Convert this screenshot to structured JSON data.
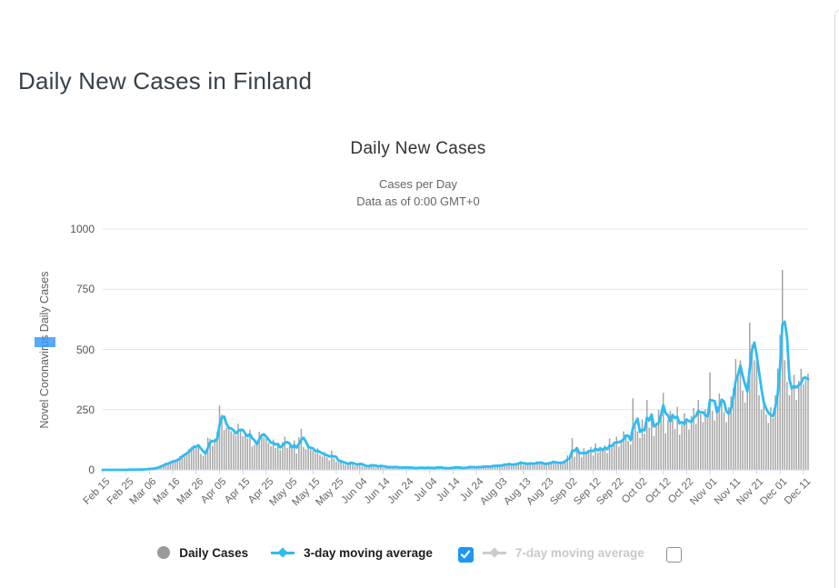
{
  "page": {
    "title": "Daily New Cases in Finland"
  },
  "chart": {
    "title": "Daily New Cases",
    "subtitle_line1": "Cases per Day",
    "subtitle_line2": "Data as of 0:00 GMT+0",
    "y_axis": {
      "title": "Novel Coronavirus Daily Cases",
      "ticks": [
        0,
        250,
        500,
        750,
        1000
      ],
      "max": 1000
    },
    "x_axis": {
      "tick_labels": [
        "Feb 15",
        "Feb 25",
        "Mar 06",
        "Mar 16",
        "Mar 26",
        "Apr 05",
        "Apr 15",
        "Apr 25",
        "May 05",
        "May 15",
        "May 25",
        "Jun 04",
        "Jun 14",
        "Jun 24",
        "Jul 04",
        "Jul 14",
        "Jul 24",
        "Aug 03",
        "Aug 13",
        "Aug 23",
        "Sep 02",
        "Sep 12",
        "Sep 22",
        "Oct 02",
        "Oct 12",
        "Oct 22",
        "Nov 01",
        "Nov 11",
        "Nov 21",
        "Dec 01",
        "Dec 11"
      ],
      "tick_day_indices": [
        0,
        10,
        20,
        30,
        40,
        50,
        60,
        70,
        80,
        90,
        100,
        110,
        120,
        130,
        140,
        150,
        160,
        170,
        180,
        190,
        200,
        210,
        220,
        230,
        240,
        250,
        260,
        270,
        280,
        290,
        300
      ]
    }
  },
  "legend": {
    "daily_cases": {
      "label": "Daily Cases",
      "marker": "circle-icon",
      "color": "#9a9a9a"
    },
    "ma3": {
      "label": "3-day moving average",
      "marker": "line-diamond-icon",
      "color": "#2fbcf2",
      "checkbox": "checked"
    },
    "ma7": {
      "label": "7-day moving average",
      "marker": "line-diamond-icon",
      "color": "#cccccc",
      "checkbox": "unchecked",
      "disabled": true
    }
  },
  "colors": {
    "line_blue": "#2fbcf2",
    "bar_gray": "#a5a5a5",
    "checkbox_blue": "#2196f3",
    "disabled_gray": "#cccccc",
    "grid": "#e6e6e6",
    "axis_line": "#ccd6eb",
    "selection_blue": "#3297fd",
    "title_dark": "#37414b"
  },
  "chart_data": {
    "type": "bar",
    "title": "Daily New Cases",
    "subtitle": "Cases per Day — Data as of 0:00 GMT+0",
    "xlabel": "",
    "ylabel": "Novel Coronavirus Daily Cases",
    "ylim": [
      0,
      1000
    ],
    "grid": "horizontal",
    "legend_position": "bottom",
    "x": {
      "start": "Feb 15",
      "end": "Dec 13",
      "step": "1 day",
      "n_points": 303
    },
    "series": [
      {
        "name": "Daily Cases",
        "type": "bar",
        "values": [
          0,
          0,
          0,
          0,
          0,
          0,
          0,
          0,
          0,
          0,
          0,
          1,
          1,
          0,
          1,
          1,
          2,
          1,
          3,
          4,
          5,
          4,
          8,
          10,
          14,
          19,
          21,
          30,
          26,
          35,
          41,
          33,
          48,
          56,
          62,
          68,
          74,
          88,
          95,
          102,
          94,
          108,
          66,
          58,
          80,
          134,
          129,
          98,
          130,
          158,
          267,
          230,
          166,
          174,
          182,
          160,
          151,
          142,
          192,
          165,
          140,
          148,
          130,
          167,
          97,
          104,
          119,
          158,
          150,
          136,
          130,
          112,
          98,
          126,
          91,
          106,
          82,
          116,
          138,
          92,
          99,
          87,
          122,
          68,
          135,
          170,
          95,
          86,
          105,
          85,
          78,
          70,
          90,
          62,
          55,
          75,
          52,
          40,
          80,
          48,
          34,
          30,
          42,
          25,
          21,
          28,
          35,
          23,
          18,
          26,
          30,
          16,
          12,
          20,
          14,
          24,
          18,
          10,
          16,
          22,
          8,
          12,
          14,
          9,
          11,
          17,
          6,
          8,
          13,
          10,
          7,
          12,
          9,
          5,
          8,
          11,
          7,
          10,
          6,
          12,
          8,
          5,
          9,
          14,
          7,
          10,
          6,
          8,
          5,
          11,
          9,
          13,
          7,
          10,
          6,
          9,
          12,
          15,
          8,
          11,
          14,
          10,
          12,
          18,
          9,
          16,
          13,
          20,
          17,
          14,
          22,
          19,
          25,
          21,
          28,
          16,
          23,
          30,
          26,
          35,
          20,
          27,
          24,
          31,
          22,
          28,
          36,
          25,
          30,
          21,
          26,
          33,
          29,
          38,
          27,
          24,
          35,
          31,
          40,
          60,
          48,
          132,
          55,
          85,
          70,
          52,
          90,
          65,
          78,
          95,
          60,
          110,
          72,
          88,
          85,
          102,
          70,
          130,
          96,
          110,
          138,
          96,
          124,
          160,
          145,
          120,
          105,
          297,
          180,
          160,
          132,
          210,
          150,
          290,
          175,
          225,
          140,
          196,
          250,
          235,
          320,
          152,
          208,
          245,
          230,
          170,
          262,
          146,
          188,
          235,
          205,
          168,
          224,
          257,
          190,
          290,
          230,
          198,
          252,
          215,
          405,
          245,
          205,
          265,
          317,
          292,
          240,
          198,
          260,
          305,
          340,
          460,
          385,
          455,
          330,
          280,
          365,
          611,
          520,
          455,
          455,
          310,
          250,
          285,
          230,
          195,
          260,
          215,
          310,
          420,
          560,
          830,
          455,
          365,
          310,
          340,
          395,
          290,
          370,
          420,
          355,
          375,
          400
        ]
      },
      {
        "name": "3-day moving average",
        "type": "line",
        "visible": true,
        "derived": "trailing 3-day mean of Daily Cases (computed at render)"
      },
      {
        "name": "7-day moving average",
        "type": "line",
        "visible": false
      }
    ]
  }
}
